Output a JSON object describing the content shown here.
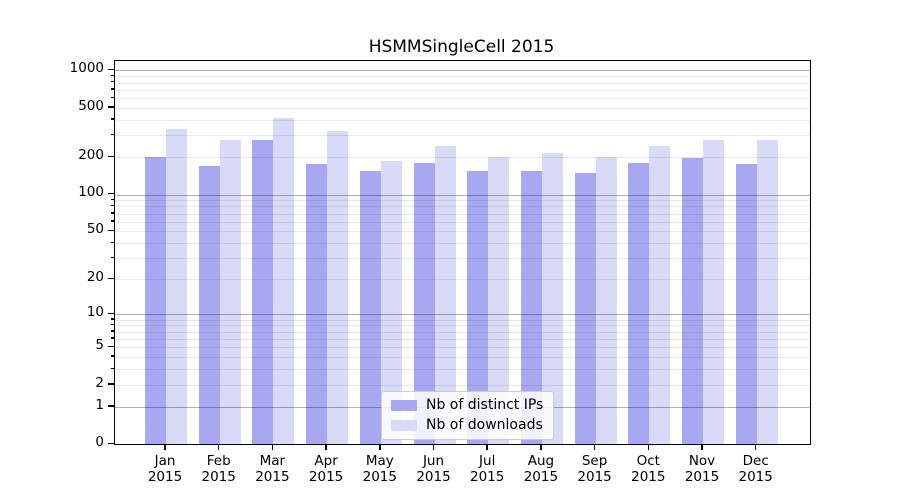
{
  "figure": {
    "title": "HSMMSingleCell 2015",
    "background_color": "#ffffff",
    "axis_color": "#000000",
    "gridline_minor_color": "#ebebeb",
    "gridline_major_color": "#b3b3b3"
  },
  "chart_data": {
    "type": "bar",
    "title": "HSMMSingleCell 2015",
    "categories": [
      "Jan",
      "Feb",
      "Mar",
      "Apr",
      "May",
      "Jun",
      "Jul",
      "Aug",
      "Sep",
      "Oct",
      "Nov",
      "Dec"
    ],
    "category_year": "2015",
    "series": [
      {
        "name": "Nb of distinct IPs",
        "color": "#a8a8f2",
        "values": [
          200,
          171,
          278,
          177,
          154,
          180,
          156,
          154,
          150,
          179,
          199,
          178
        ]
      },
      {
        "name": "Nb of downloads",
        "color": "#d9d9f8",
        "values": [
          341,
          278,
          415,
          324,
          186,
          247,
          203,
          217,
          200,
          247,
          278,
          278
        ]
      }
    ],
    "xlabel": "",
    "ylabel": "",
    "yscale": "log1p",
    "y_ticks": [
      0,
      1,
      2,
      5,
      10,
      20,
      50,
      100,
      200,
      500,
      1000
    ],
    "y_minor_gridlines": [
      2,
      3,
      4,
      5,
      6,
      7,
      8,
      9,
      20,
      30,
      40,
      50,
      60,
      70,
      80,
      90,
      200,
      300,
      400,
      500,
      600,
      700,
      800,
      900
    ],
    "y_major_gridlines": [
      1,
      10,
      100,
      1000
    ],
    "ylim": [
      0,
      1200
    ],
    "grid": true,
    "legend_position": "lower-center-inside"
  }
}
